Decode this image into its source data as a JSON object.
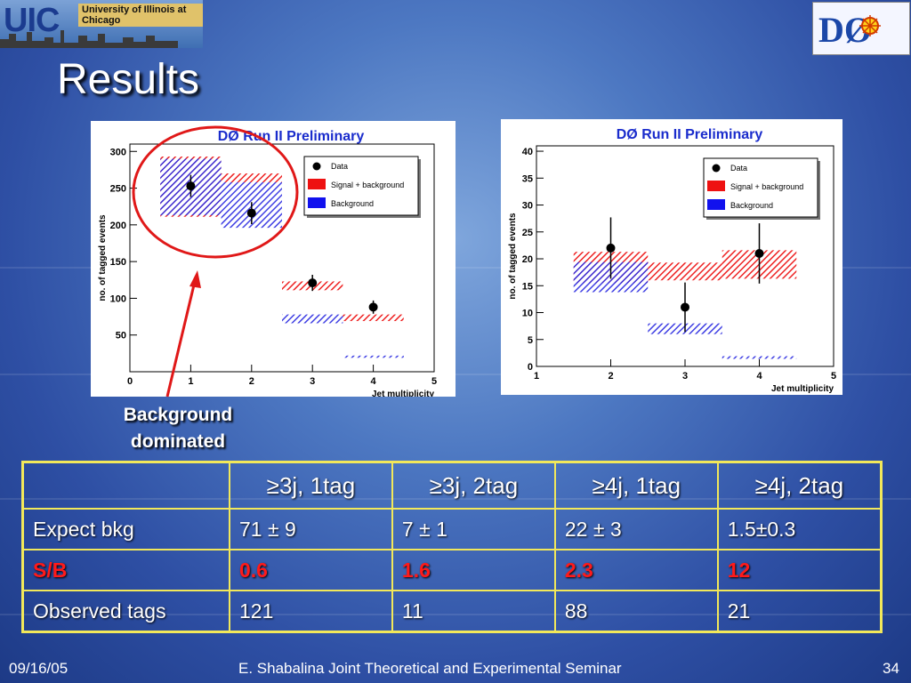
{
  "header": {
    "uic_logo_text": "UIC",
    "uic_logo_subtitle": "University of Illinois at Chicago",
    "d0_logo": "DØ logo",
    "title": "Results"
  },
  "chart_data": [
    {
      "type": "histogram",
      "title": "DØ Run II Preliminary",
      "xlabel": "Jet multiplicity",
      "ylabel": "no. of tagged events",
      "xlim": [
        0,
        5
      ],
      "ylim": [
        0,
        310
      ],
      "xticks": [
        0,
        1,
        2,
        3,
        4,
        5
      ],
      "yticks": [
        50,
        100,
        150,
        200,
        250,
        300
      ],
      "legend": {
        "placement": "top-right",
        "entries": [
          "Data",
          "Signal + background",
          "Background"
        ]
      },
      "data_points": [
        {
          "x": 1,
          "y": 253,
          "err": 15
        },
        {
          "x": 2,
          "y": 216,
          "err": 15
        },
        {
          "x": 3,
          "y": 121,
          "err": 11
        },
        {
          "x": 4,
          "y": 88,
          "err": 9
        }
      ],
      "signal_plus_background": [
        {
          "x0": 0.5,
          "x1": 1.5,
          "lo": 211,
          "hi": 293
        },
        {
          "x0": 1.5,
          "x1": 2.5,
          "lo": 258,
          "hi": 270
        },
        {
          "x0": 2.5,
          "x1": 3.5,
          "lo": 111,
          "hi": 123
        },
        {
          "x0": 3.5,
          "x1": 4.5,
          "lo": 69,
          "hi": 78
        }
      ],
      "background": [
        {
          "x0": 0.5,
          "x1": 1.5,
          "lo": 213,
          "hi": 290
        },
        {
          "x0": 1.5,
          "x1": 2.5,
          "lo": 196,
          "hi": 258
        },
        {
          "x0": 2.5,
          "x1": 3.5,
          "lo": 66,
          "hi": 78
        },
        {
          "x0": 3.5,
          "x1": 4.5,
          "lo": 19,
          "hi": 22
        }
      ]
    },
    {
      "type": "histogram",
      "title": "DØ Run II Preliminary",
      "xlabel": "Jet multiplicity",
      "ylabel": "no. of tagged events",
      "xlim": [
        1,
        5
      ],
      "ylim": [
        0,
        41
      ],
      "xticks": [
        1,
        2,
        3,
        4,
        5
      ],
      "yticks": [
        0,
        5,
        10,
        15,
        20,
        25,
        30,
        35,
        40
      ],
      "legend": {
        "placement": "top-right",
        "entries": [
          "Data",
          "Signal + background",
          "Background"
        ]
      },
      "data_points": [
        {
          "x": 2,
          "y": 22,
          "err": 5.7
        },
        {
          "x": 3,
          "y": 11,
          "err": 4.6
        },
        {
          "x": 4,
          "y": 21,
          "err": 5.6
        }
      ],
      "signal_plus_background": [
        {
          "x0": 1.5,
          "x1": 2.5,
          "lo": 15.5,
          "hi": 21.3
        },
        {
          "x0": 2.5,
          "x1": 3.5,
          "lo": 16,
          "hi": 19.3
        },
        {
          "x0": 3.5,
          "x1": 4.5,
          "lo": 16.3,
          "hi": 21.6
        }
      ],
      "background": [
        {
          "x0": 1.5,
          "x1": 2.5,
          "lo": 13.8,
          "hi": 19.4
        },
        {
          "x0": 2.5,
          "x1": 3.5,
          "lo": 6,
          "hi": 8
        },
        {
          "x0": 3.5,
          "x1": 4.5,
          "lo": 1.4,
          "hi": 1.9
        }
      ]
    }
  ],
  "annotation": {
    "line1": "Background",
    "line2": "dominated"
  },
  "table": {
    "headers": [
      "",
      "≥3j, 1tag",
      "≥3j, 2tag",
      "≥4j, 1tag",
      "≥4j, 2tag"
    ],
    "rows": [
      [
        "Expect bkg",
        "71 ± 9",
        "7 ± 1",
        "22 ± 3",
        "1.5±0.3"
      ],
      [
        "S/B",
        "0.6",
        "1.6",
        "2.3",
        "12"
      ],
      [
        "Observed tags",
        "121",
        "11",
        "88",
        "21"
      ]
    ]
  },
  "footer": {
    "date": "09/16/05",
    "center": "E. Shabalina Joint Theoretical and Experimental Seminar",
    "page": "34"
  }
}
